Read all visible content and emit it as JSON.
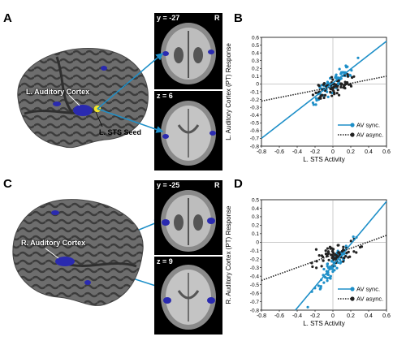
{
  "panels": {
    "A": {
      "label": "A",
      "region_label": "L. Auditory Cortex",
      "seed_label": "L. STS Seed",
      "slice_top": {
        "label": "y = -27",
        "side": "R"
      },
      "slice_bottom": {
        "label": "z = 6"
      }
    },
    "B": {
      "label": "B",
      "chart_data": {
        "type": "scatter",
        "xlabel": "L. STS Activity",
        "ylabel": "L. Auditory Cortex (PT) Response",
        "xlim": [
          -0.8,
          0.6
        ],
        "ylim": [
          -0.8,
          0.6
        ],
        "x_ticks": [
          "-0.8",
          "-0.6",
          "-0.4",
          "-0.2",
          "0",
          "0.2",
          "0.4",
          "0.6"
        ],
        "y_ticks": [
          "-0.8",
          "-0.7",
          "-0.6",
          "-0.5",
          "-0.4",
          "-0.3",
          "-0.2",
          "-0.1",
          "0",
          "0.1",
          "0.2",
          "0.3",
          "0.4",
          "0.5",
          "0.6"
        ],
        "legend_position": "bottom-right",
        "series": [
          {
            "name": "AV sync.",
            "color": "#1e8fc8",
            "line": "solid",
            "fit": [
              [
                -0.8,
                -0.7
              ],
              [
                0.6,
                0.55
              ]
            ]
          },
          {
            "name": "AV async.",
            "color": "#222222",
            "line": "dotted",
            "fit": [
              [
                -0.8,
                -0.22
              ],
              [
                0.6,
                0.1
              ]
            ]
          }
        ]
      }
    },
    "C": {
      "label": "C",
      "region_label": "R. Auditory Cortex",
      "slice_top": {
        "label": "y = -25",
        "side": "R"
      },
      "slice_bottom": {
        "label": "z = 9"
      }
    },
    "D": {
      "label": "D",
      "chart_data": {
        "type": "scatter",
        "xlabel": "L. STS Activity",
        "ylabel": "R. Auditory Cortex (PT) Response",
        "xlim": [
          -0.8,
          0.6
        ],
        "ylim": [
          -0.8,
          0.5
        ],
        "x_ticks": [
          "-0.8",
          "-0.6",
          "-0.4",
          "-0.2",
          "0",
          "0.2",
          "0.4",
          "0.6"
        ],
        "y_ticks": [
          "-0.8",
          "-0.7",
          "-0.6",
          "-0.5",
          "-0.4",
          "-0.3",
          "-0.2",
          "-0.1",
          "0",
          "0.1",
          "0.2",
          "0.3",
          "0.4",
          "0.5"
        ],
        "legend_position": "bottom-right",
        "series": [
          {
            "name": "AV sync.",
            "color": "#1e8fc8",
            "line": "solid",
            "fit": [
              [
                -0.42,
                -0.8
              ],
              [
                0.6,
                0.48
              ]
            ]
          },
          {
            "name": "AV async.",
            "color": "#222222",
            "line": "dotted",
            "fit": [
              [
                -0.8,
                -0.45
              ],
              [
                0.6,
                0.08
              ]
            ]
          }
        ]
      }
    }
  }
}
